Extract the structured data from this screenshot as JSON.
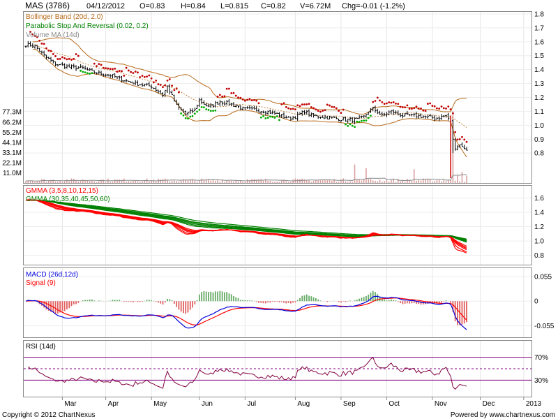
{
  "header": {
    "symbol": "MAS (3786)",
    "date": "04/12/2012",
    "open": "O=0.83",
    "high": "H=0.84",
    "low": "L=0.815",
    "close": "C=0.82",
    "volume": "V=6.72M",
    "change": "Chg=-0.01 (-1.2%)"
  },
  "footer": {
    "copyright": "Copyright © 2012 ChartNexus",
    "powered": "Powered by www.chartnexus.com"
  },
  "colors": {
    "price_line": "#000000",
    "bollinger": "#b86a1a",
    "sar": "#c00000",
    "volume_ma": "#888888",
    "gmma_short": "#ff0000",
    "gmma_long": "#008000",
    "macd": "#0000dd",
    "signal": "#ff0000",
    "hist_up": "#66aa66",
    "hist_down": "#e06060",
    "rsi": "#800040",
    "rsi_band": "#800080"
  },
  "chart_data": [
    {
      "type": "line",
      "panel": "price",
      "legend": [
        {
          "label": "Bollinger Band (20d, 2.0)",
          "color": "#b86a1a"
        },
        {
          "label": "Parabolic Stop And Reversal (0.02, 0.2)",
          "color": "#008000"
        },
        {
          "label": "Volume MA (14d)",
          "color": "#888888"
        }
      ],
      "ylim": [
        0.58,
        1.82
      ],
      "y_ticks": [
        "1.8",
        "1.7",
        "1.6",
        "1.5",
        "1.4",
        "1.3",
        "1.2",
        "1.1",
        "1.0",
        "0.9",
        "0.8"
      ],
      "volume_ticks": [
        "77.3M",
        "66.2M",
        "55.2M",
        "44.1M",
        "33.1M",
        "22.1M",
        "11.0M"
      ],
      "x_labels": [
        "Mar",
        "Apr",
        "May",
        "Jun",
        "Jul",
        "Aug",
        "Sep",
        "Oct",
        "Nov",
        "Dec",
        "2013"
      ],
      "price_anchors": [
        [
          0,
          1.58
        ],
        [
          4,
          1.57
        ],
        [
          8,
          1.5
        ],
        [
          13,
          1.44
        ],
        [
          18,
          1.42
        ],
        [
          25,
          1.41
        ],
        [
          30,
          1.38
        ],
        [
          37,
          1.36
        ],
        [
          42,
          1.33
        ],
        [
          48,
          1.3
        ],
        [
          55,
          1.28
        ],
        [
          60,
          1.22
        ],
        [
          62,
          1.28
        ],
        [
          66,
          1.14
        ],
        [
          70,
          1.08
        ],
        [
          74,
          1.11
        ],
        [
          76,
          1.18
        ],
        [
          80,
          1.13
        ],
        [
          85,
          1.17
        ],
        [
          90,
          1.15
        ],
        [
          95,
          1.12
        ],
        [
          100,
          1.11
        ],
        [
          105,
          1.1
        ],
        [
          110,
          1.08
        ],
        [
          115,
          1.05
        ],
        [
          118,
          1.06
        ],
        [
          122,
          1.1
        ],
        [
          125,
          1.07
        ],
        [
          130,
          1.06
        ],
        [
          135,
          1.05
        ],
        [
          140,
          1.04
        ],
        [
          145,
          1.04
        ],
        [
          148,
          1.06
        ],
        [
          150,
          1.1
        ],
        [
          152,
          1.12
        ],
        [
          156,
          1.07
        ],
        [
          160,
          1.1
        ],
        [
          165,
          1.07
        ],
        [
          170,
          1.07
        ],
        [
          175,
          1.06
        ],
        [
          180,
          1.05
        ],
        [
          184,
          1.07
        ],
        [
          186,
          1.03
        ],
        [
          187,
          0.9
        ],
        [
          188,
          0.83
        ],
        [
          190,
          0.86
        ],
        [
          193,
          0.82
        ]
      ],
      "volume_spikes": [
        [
          144,
          20
        ],
        [
          149,
          16
        ],
        [
          170,
          15
        ],
        [
          187,
          78
        ],
        [
          189,
          8
        ],
        [
          191,
          12
        ],
        [
          193,
          8
        ]
      ]
    },
    {
      "type": "line",
      "panel": "gmma",
      "legend": [
        {
          "label": "GMMA (3,5,8,10,12,15)",
          "color": "#ff0000"
        },
        {
          "label": "GMMA (30,35,40,45,50,60)",
          "color": "#008000"
        }
      ],
      "ylim": [
        0.66,
        1.78
      ],
      "y_ticks": [
        "1.6",
        "1.4",
        "1.2",
        "1.0",
        "0.8"
      ]
    },
    {
      "type": "line",
      "panel": "macd",
      "legend": [
        {
          "label": "MACD (26d,12d)",
          "color": "#0000dd"
        },
        {
          "label": "Signal (9)",
          "color": "#ff0000"
        }
      ],
      "ylim": [
        -0.082,
        0.075
      ],
      "y_ticks": [
        "0.055",
        "0",
        "-0.055"
      ]
    },
    {
      "type": "line",
      "panel": "rsi",
      "legend": [
        {
          "label": "RSI (14d)",
          "color": "#800040"
        }
      ],
      "ylim": [
        0,
        100
      ],
      "y_ticks": [
        "70%",
        "30%"
      ],
      "bands": [
        70,
        30
      ]
    }
  ]
}
